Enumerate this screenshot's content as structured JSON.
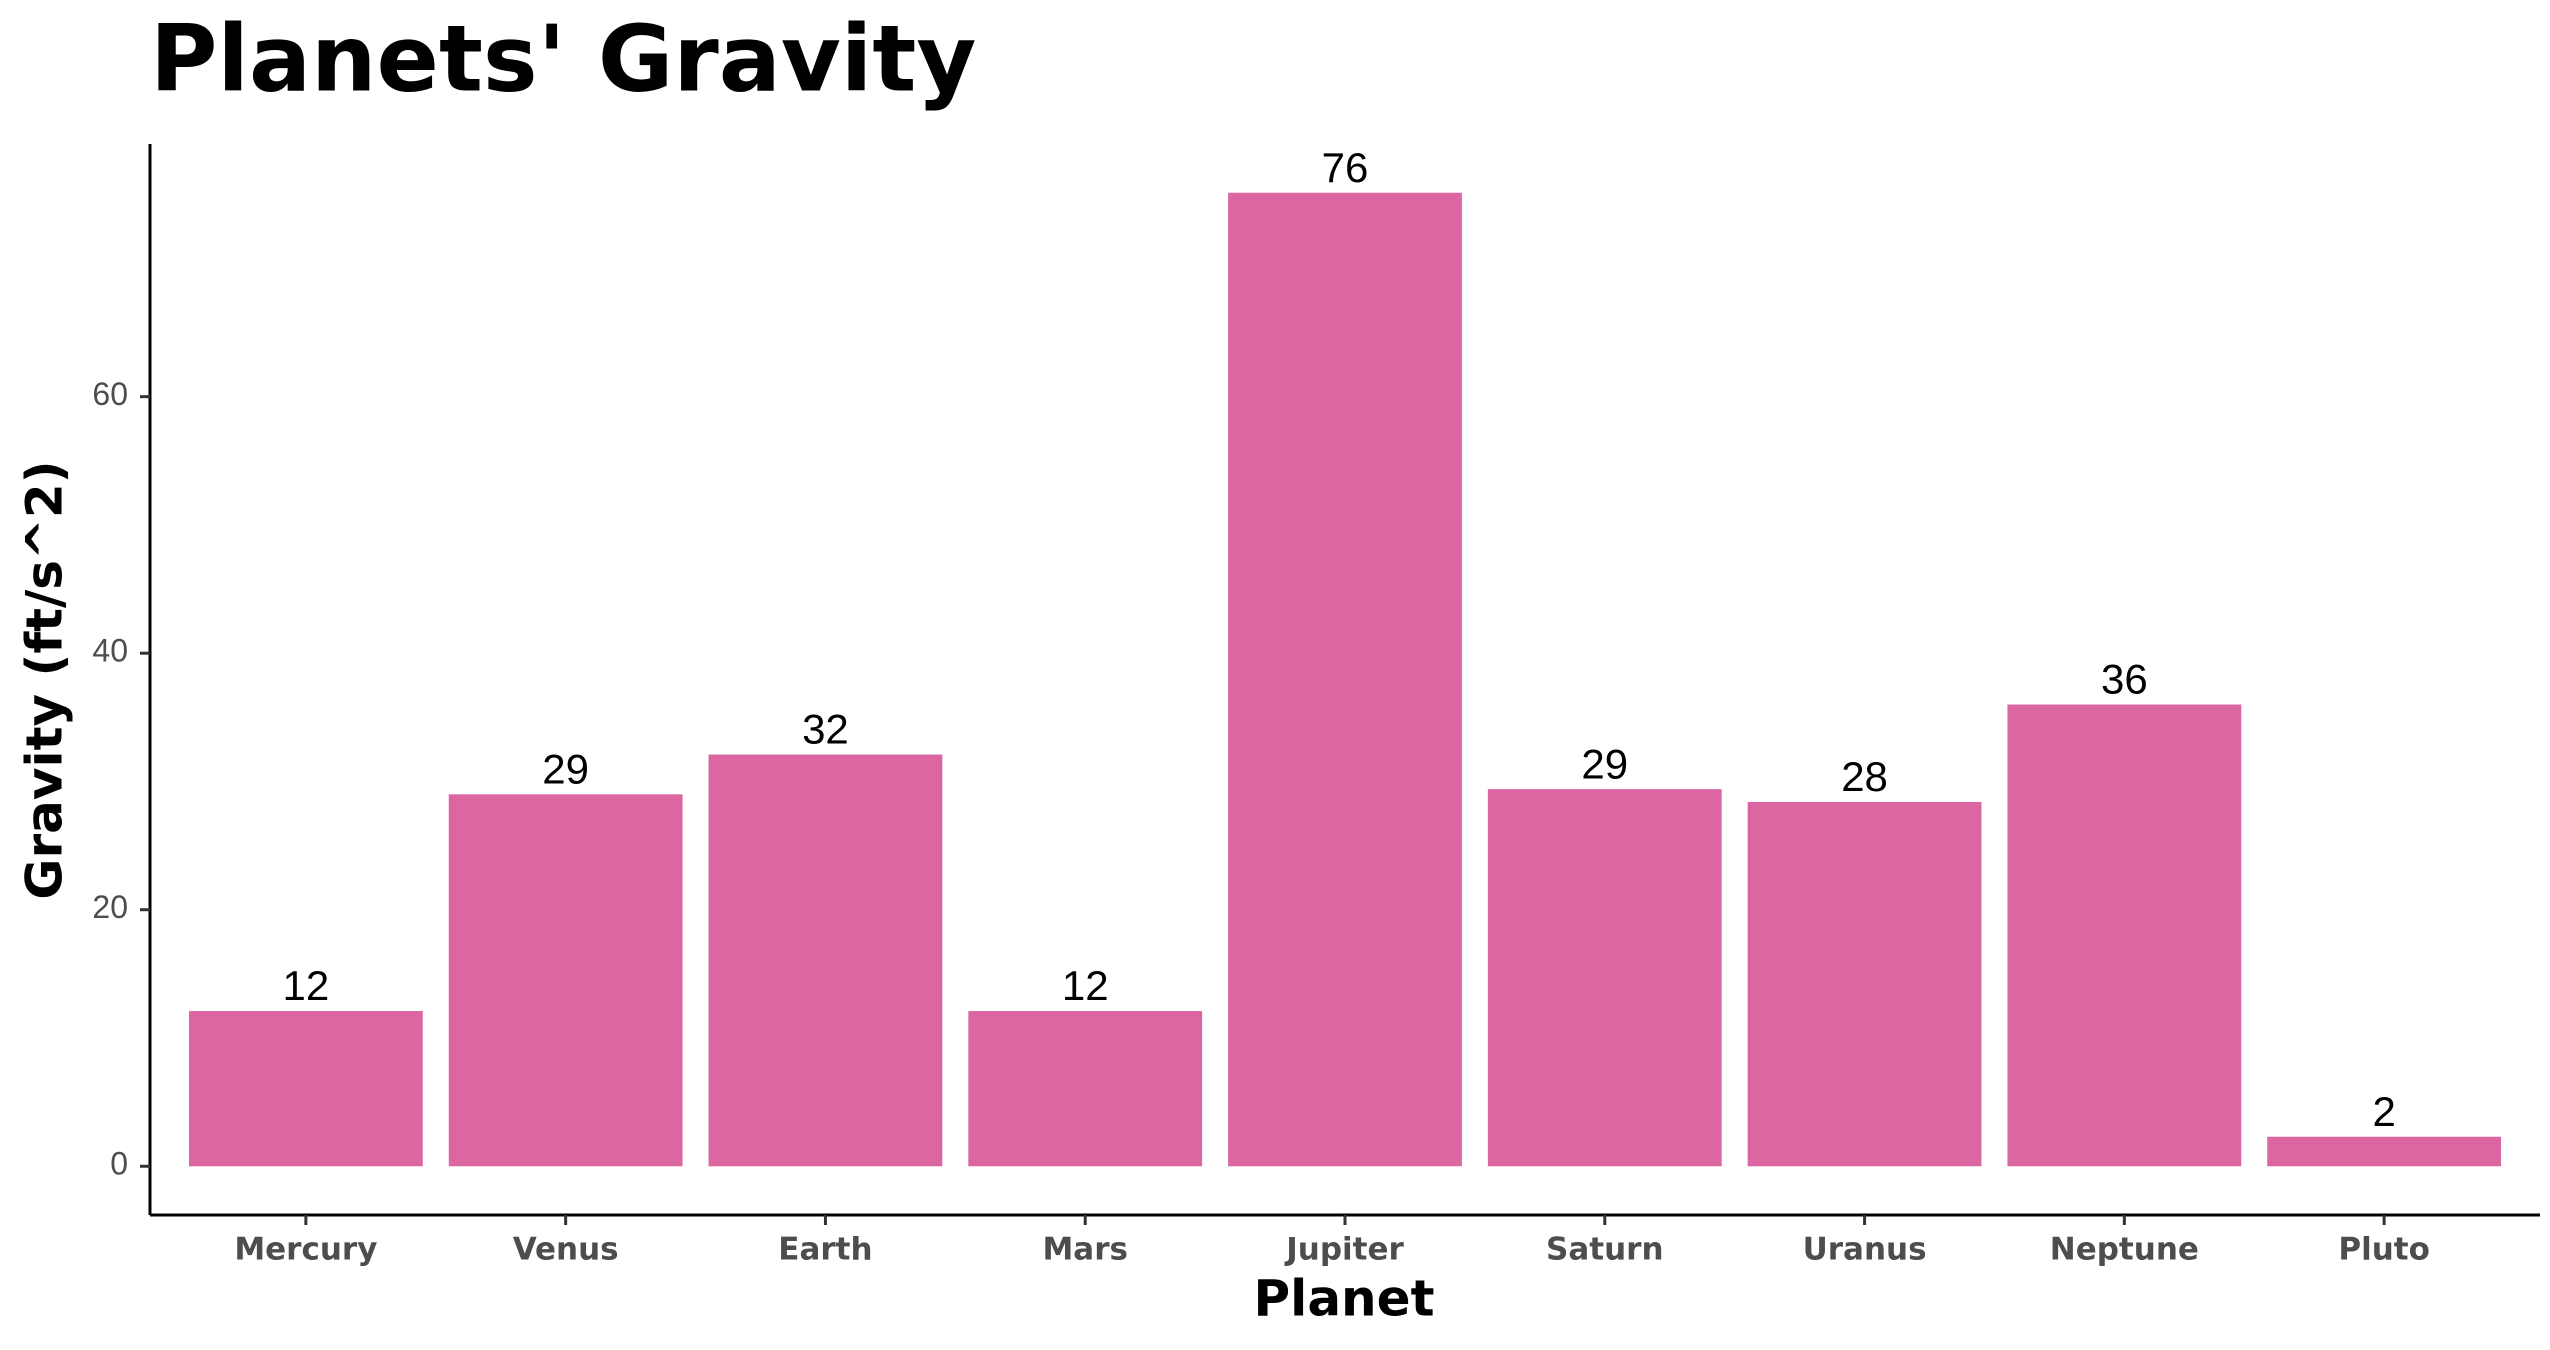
{
  "chart_data": {
    "type": "bar",
    "title": "Planets' Gravity",
    "x_label": "Planet",
    "y_label": "Gravity (ft/s^2)",
    "categories": [
      "Mercury",
      "Venus",
      "Earth",
      "Mars",
      "Jupiter",
      "Saturn",
      "Uranus",
      "Neptune",
      "Pluto"
    ],
    "values": [
      12.1,
      29.0,
      32.1,
      12.1,
      75.9,
      29.4,
      28.4,
      36.0,
      2.3
    ],
    "value_labels": [
      "12",
      "29",
      "32",
      "12",
      "76",
      "29",
      "28",
      "36",
      "2"
    ],
    "color": "#db66a2",
    "ylim": [
      -3.8,
      79.7
    ],
    "yticks": [
      0,
      20,
      40,
      60
    ],
    "grid": false
  }
}
